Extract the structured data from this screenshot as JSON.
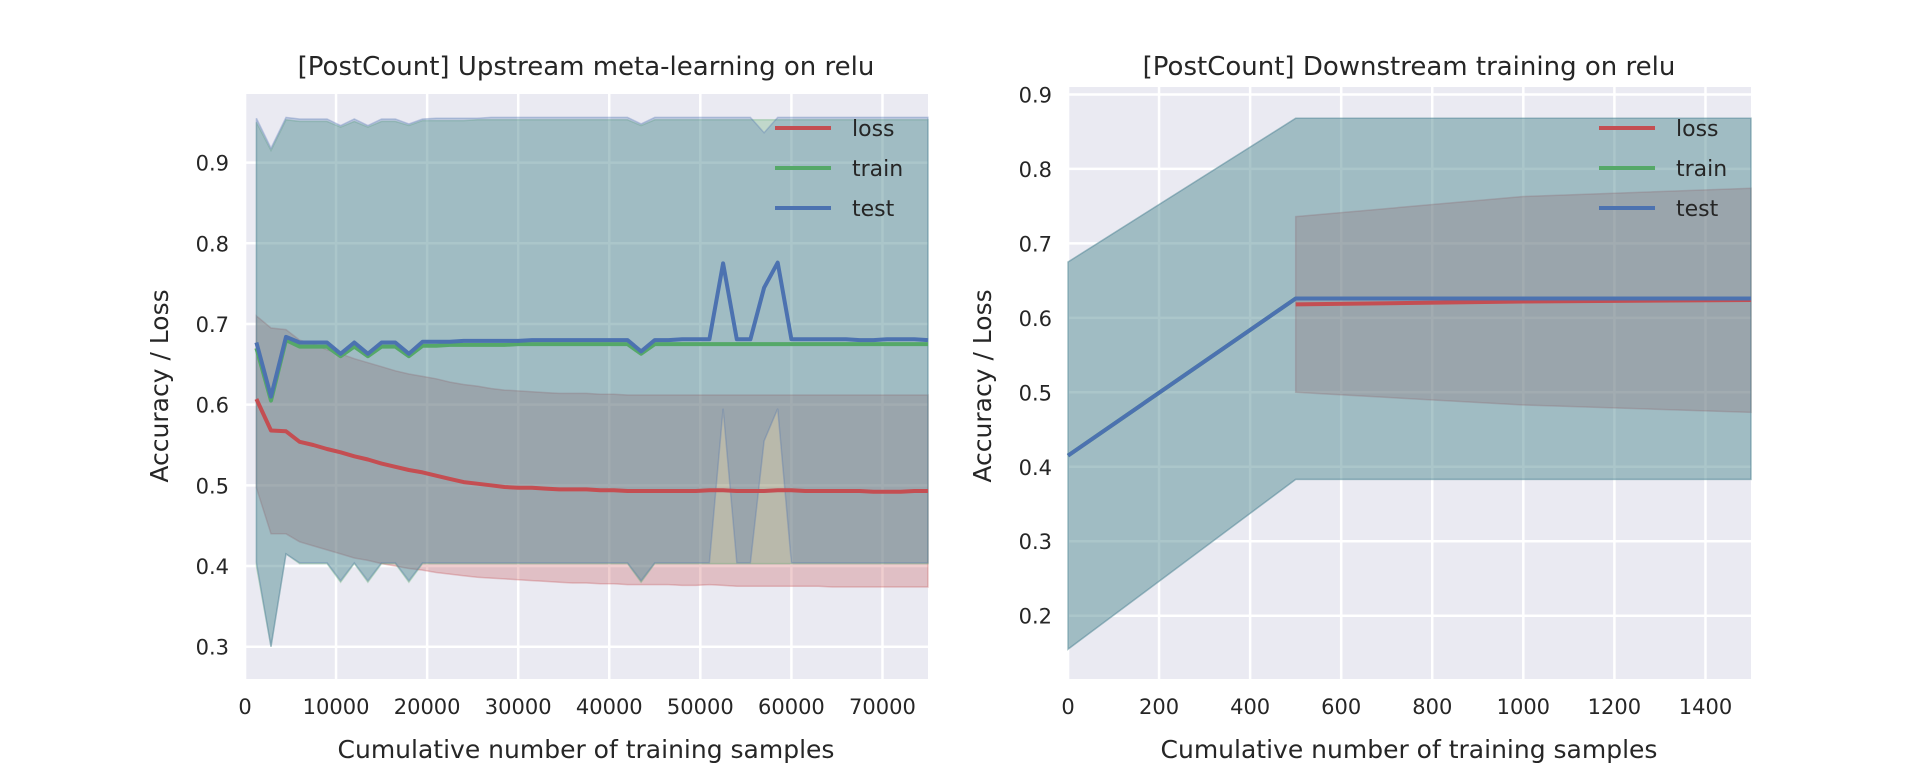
{
  "colors": {
    "background": "#EAEAF2",
    "grid": "#FFFFFF",
    "loss": "#C44E52",
    "train": "#55A868",
    "test": "#4C72B0",
    "text": "#262626"
  },
  "chart_data": [
    {
      "type": "line",
      "title": "[PostCount] Upstream meta-learning on relu",
      "xlabel": "Cumulative number of training samples",
      "ylabel": "Accuracy / Loss",
      "xlim": [
        0,
        75000
      ],
      "ylim": [
        0.26,
        0.985
      ],
      "xticks": [
        0,
        10000,
        20000,
        30000,
        40000,
        50000,
        60000,
        70000
      ],
      "yticks": [
        0.3,
        0.4,
        0.5,
        0.6,
        0.7,
        0.8,
        0.9
      ],
      "grid": true,
      "legend_position": "top-right",
      "x": [
        1250,
        2850,
        4500,
        6000,
        7500,
        9000,
        10500,
        12000,
        13500,
        15000,
        16500,
        18000,
        19500,
        21000,
        22500,
        24000,
        25500,
        27000,
        28500,
        30000,
        31500,
        33000,
        34500,
        36000,
        37500,
        39000,
        40500,
        42000,
        43500,
        45000,
        46500,
        48000,
        49500,
        51000,
        52500,
        54000,
        55500,
        57000,
        58500,
        60000,
        61500,
        63000,
        64500,
        66000,
        67500,
        69000,
        70500,
        72000,
        73500,
        75000
      ],
      "series": [
        {
          "name": "loss",
          "values": [
            0.607,
            0.568,
            0.567,
            0.554,
            0.55,
            0.545,
            0.541,
            0.536,
            0.532,
            0.527,
            0.523,
            0.519,
            0.516,
            0.512,
            0.508,
            0.504,
            0.502,
            0.5,
            0.498,
            0.497,
            0.497,
            0.496,
            0.495,
            0.495,
            0.495,
            0.494,
            0.494,
            0.493,
            0.493,
            0.493,
            0.493,
            0.493,
            0.493,
            0.494,
            0.494,
            0.493,
            0.493,
            0.493,
            0.494,
            0.494,
            0.493,
            0.493,
            0.493,
            0.493,
            0.493,
            0.492,
            0.492,
            0.492,
            0.493,
            0.493
          ],
          "lower": [
            0.497,
            0.44,
            0.44,
            0.43,
            0.425,
            0.42,
            0.415,
            0.41,
            0.407,
            0.403,
            0.4,
            0.397,
            0.395,
            0.392,
            0.39,
            0.388,
            0.386,
            0.385,
            0.384,
            0.383,
            0.382,
            0.381,
            0.38,
            0.379,
            0.379,
            0.378,
            0.378,
            0.377,
            0.377,
            0.377,
            0.377,
            0.376,
            0.376,
            0.377,
            0.376,
            0.375,
            0.375,
            0.375,
            0.375,
            0.375,
            0.375,
            0.375,
            0.374,
            0.374,
            0.374,
            0.374,
            0.374,
            0.374,
            0.374,
            0.374
          ],
          "upper": [
            0.71,
            0.695,
            0.693,
            0.68,
            0.675,
            0.668,
            0.663,
            0.657,
            0.652,
            0.647,
            0.642,
            0.638,
            0.635,
            0.632,
            0.628,
            0.625,
            0.623,
            0.62,
            0.618,
            0.617,
            0.616,
            0.615,
            0.614,
            0.614,
            0.614,
            0.613,
            0.613,
            0.612,
            0.612,
            0.612,
            0.612,
            0.612,
            0.612,
            0.612,
            0.612,
            0.612,
            0.612,
            0.612,
            0.612,
            0.612,
            0.612,
            0.612,
            0.612,
            0.612,
            0.612,
            0.612,
            0.612,
            0.612,
            0.612,
            0.612
          ]
        },
        {
          "name": "train",
          "values": [
            0.67,
            0.605,
            0.68,
            0.672,
            0.672,
            0.672,
            0.66,
            0.672,
            0.66,
            0.672,
            0.672,
            0.66,
            0.673,
            0.673,
            0.674,
            0.674,
            0.674,
            0.674,
            0.674,
            0.675,
            0.675,
            0.675,
            0.675,
            0.675,
            0.675,
            0.675,
            0.675,
            0.675,
            0.663,
            0.675,
            0.675,
            0.675,
            0.675,
            0.675,
            0.675,
            0.675,
            0.675,
            0.675,
            0.675,
            0.675,
            0.675,
            0.675,
            0.675,
            0.675,
            0.675,
            0.675,
            0.675,
            0.675,
            0.675,
            0.675
          ],
          "lower": [
            0.4,
            0.3,
            0.415,
            0.403,
            0.403,
            0.403,
            0.38,
            0.403,
            0.38,
            0.403,
            0.403,
            0.38,
            0.403,
            0.403,
            0.403,
            0.403,
            0.403,
            0.403,
            0.403,
            0.403,
            0.403,
            0.403,
            0.403,
            0.403,
            0.403,
            0.403,
            0.403,
            0.403,
            0.38,
            0.403,
            0.403,
            0.403,
            0.403,
            0.403,
            0.403,
            0.403,
            0.403,
            0.403,
            0.403,
            0.403,
            0.403,
            0.403,
            0.403,
            0.403,
            0.403,
            0.403,
            0.403,
            0.403,
            0.403,
            0.403
          ],
          "upper": [
            0.95,
            0.915,
            0.953,
            0.951,
            0.951,
            0.951,
            0.944,
            0.951,
            0.944,
            0.951,
            0.951,
            0.946,
            0.952,
            0.952,
            0.952,
            0.952,
            0.953,
            0.953,
            0.953,
            0.953,
            0.953,
            0.953,
            0.953,
            0.953,
            0.953,
            0.953,
            0.953,
            0.953,
            0.946,
            0.953,
            0.953,
            0.953,
            0.953,
            0.953,
            0.953,
            0.953,
            0.953,
            0.953,
            0.953,
            0.953,
            0.953,
            0.953,
            0.953,
            0.953,
            0.953,
            0.953,
            0.953,
            0.953,
            0.953,
            0.953
          ]
        },
        {
          "name": "test",
          "values": [
            0.677,
            0.61,
            0.684,
            0.677,
            0.677,
            0.677,
            0.663,
            0.677,
            0.663,
            0.677,
            0.677,
            0.663,
            0.678,
            0.678,
            0.678,
            0.679,
            0.679,
            0.679,
            0.679,
            0.679,
            0.68,
            0.68,
            0.68,
            0.68,
            0.68,
            0.68,
            0.68,
            0.68,
            0.666,
            0.68,
            0.68,
            0.681,
            0.681,
            0.681,
            0.775,
            0.681,
            0.681,
            0.745,
            0.776,
            0.681,
            0.681,
            0.681,
            0.681,
            0.681,
            0.68,
            0.68,
            0.681,
            0.681,
            0.681,
            0.68
          ],
          "lower": [
            0.405,
            0.3,
            0.415,
            0.404,
            0.404,
            0.404,
            0.382,
            0.404,
            0.382,
            0.404,
            0.404,
            0.382,
            0.404,
            0.404,
            0.404,
            0.404,
            0.404,
            0.404,
            0.404,
            0.404,
            0.404,
            0.404,
            0.404,
            0.404,
            0.404,
            0.404,
            0.404,
            0.404,
            0.382,
            0.404,
            0.404,
            0.404,
            0.404,
            0.404,
            0.595,
            0.404,
            0.404,
            0.555,
            0.595,
            0.404,
            0.404,
            0.404,
            0.404,
            0.404,
            0.404,
            0.404,
            0.404,
            0.404,
            0.404,
            0.404
          ],
          "upper": [
            0.955,
            0.918,
            0.956,
            0.954,
            0.954,
            0.954,
            0.946,
            0.954,
            0.946,
            0.954,
            0.954,
            0.948,
            0.954,
            0.955,
            0.955,
            0.955,
            0.955,
            0.956,
            0.956,
            0.956,
            0.956,
            0.956,
            0.956,
            0.956,
            0.956,
            0.956,
            0.956,
            0.956,
            0.948,
            0.956,
            0.956,
            0.956,
            0.956,
            0.956,
            0.956,
            0.956,
            0.956,
            0.937,
            0.956,
            0.956,
            0.956,
            0.956,
            0.956,
            0.956,
            0.956,
            0.956,
            0.956,
            0.956,
            0.956,
            0.956
          ]
        }
      ]
    },
    {
      "type": "line",
      "title": "[PostCount] Downstream training on relu",
      "xlabel": "Cumulative number of training samples",
      "ylabel": "Accuracy / Loss",
      "xlim": [
        0,
        1500
      ],
      "ylim": [
        0.115,
        0.91
      ],
      "xticks": [
        0,
        200,
        400,
        600,
        800,
        1000,
        1200,
        1400
      ],
      "yticks": [
        0.2,
        0.3,
        0.4,
        0.5,
        0.6,
        0.7,
        0.8,
        0.9
      ],
      "grid": true,
      "legend_position": "top-right",
      "x": [
        0,
        500,
        1000,
        1500
      ],
      "series": [
        {
          "name": "loss",
          "values": [
            null,
            0.618,
            0.622,
            0.624
          ],
          "lower": [
            null,
            0.5,
            0.483,
            0.473
          ],
          "upper": [
            null,
            0.736,
            0.763,
            0.774
          ]
        },
        {
          "name": "train",
          "values": [
            0.415,
            0.626,
            0.626,
            0.626
          ],
          "lower": [
            0.155,
            0.383,
            0.383,
            0.383
          ],
          "upper": [
            0.675,
            0.868,
            0.868,
            0.868
          ]
        },
        {
          "name": "test",
          "values": [
            0.415,
            0.626,
            0.626,
            0.626
          ],
          "lower": [
            0.155,
            0.383,
            0.383,
            0.383
          ],
          "upper": [
            0.675,
            0.868,
            0.868,
            0.868
          ]
        }
      ]
    }
  ]
}
